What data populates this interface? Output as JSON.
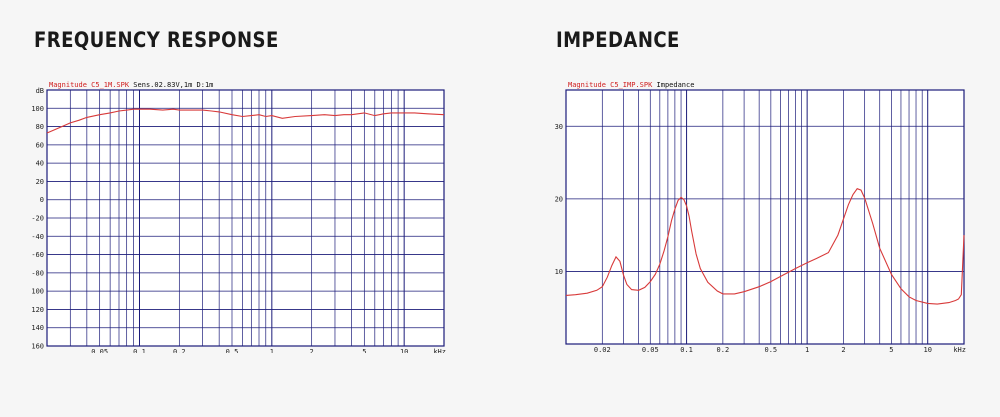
{
  "headings": {
    "left": "FREQUENCY RESPONSE",
    "right": "IMPEDANCE"
  },
  "colors": {
    "background": "#f6f6f6",
    "plot_background": "#ffffff",
    "grid": "#1c1c7a",
    "trace": "#d83a3a",
    "heading": "#1a1a1a",
    "legend_magnitude": "#d02020"
  },
  "chart_data": [
    {
      "type": "line",
      "legend": {
        "series_label": "Magnitude C5_1M.SPK",
        "note": "Sens.02.83V,1m D:1m"
      },
      "x_unit": "kHz",
      "x_scale": "log",
      "xlim": [
        0.02,
        20
      ],
      "x_tick_labels": [
        {
          "value": 0.05,
          "label": "0.05"
        },
        {
          "value": 0.1,
          "label": "0.1"
        },
        {
          "value": 0.2,
          "label": "0.2"
        },
        {
          "value": 0.5,
          "label": "0.5"
        },
        {
          "value": 1,
          "label": "1"
        },
        {
          "value": 2,
          "label": "2"
        },
        {
          "value": 5,
          "label": "5"
        },
        {
          "value": 10,
          "label": "10"
        }
      ],
      "y_unit": "dB",
      "ylim": [
        -160,
        120
      ],
      "y_ticks": [
        100,
        80,
        60,
        40,
        20,
        0,
        -20,
        -40,
        -60,
        -80,
        -100,
        -120,
        -140,
        -160
      ],
      "grid": true,
      "series": [
        {
          "x": [
            0.02,
            0.025,
            0.03,
            0.035,
            0.04,
            0.05,
            0.06,
            0.07,
            0.08,
            0.09,
            0.1,
            0.12,
            0.15,
            0.18,
            0.2,
            0.25,
            0.3,
            0.35,
            0.4,
            0.5,
            0.6,
            0.7,
            0.8,
            0.9,
            1,
            1.2,
            1.5,
            2,
            2.5,
            3,
            3.5,
            4,
            5,
            6,
            7,
            8,
            10,
            12,
            15,
            20
          ],
          "y": [
            73,
            79,
            84,
            87,
            90,
            93,
            95,
            97,
            98,
            99,
            99,
            99,
            98,
            99,
            98,
            98,
            98,
            97,
            96,
            93,
            91,
            92,
            93,
            91,
            92,
            89,
            91,
            92,
            93,
            92,
            93,
            93,
            95,
            92,
            94,
            95,
            95,
            95,
            94,
            93
          ]
        }
      ]
    },
    {
      "type": "line",
      "legend": {
        "series_label": "Magnitude C5_IMP.SPK",
        "note": "Impedance"
      },
      "x_unit": "kHz",
      "x_scale": "log",
      "xlim": [
        0.01,
        20
      ],
      "x_tick_labels": [
        {
          "value": 0.02,
          "label": "0.02"
        },
        {
          "value": 0.05,
          "label": "0.05"
        },
        {
          "value": 0.1,
          "label": "0.1"
        },
        {
          "value": 0.2,
          "label": "0.2"
        },
        {
          "value": 0.5,
          "label": "0.5"
        },
        {
          "value": 1,
          "label": "1"
        },
        {
          "value": 2,
          "label": "2"
        },
        {
          "value": 5,
          "label": "5"
        },
        {
          "value": 10,
          "label": "10"
        }
      ],
      "ylim": [
        0,
        35
      ],
      "y_ticks": [
        30,
        20,
        10
      ],
      "grid": true,
      "series": [
        {
          "x": [
            0.01,
            0.012,
            0.015,
            0.018,
            0.02,
            0.022,
            0.024,
            0.026,
            0.028,
            0.03,
            0.032,
            0.035,
            0.04,
            0.045,
            0.05,
            0.055,
            0.06,
            0.065,
            0.07,
            0.075,
            0.08,
            0.085,
            0.09,
            0.095,
            0.1,
            0.105,
            0.11,
            0.12,
            0.13,
            0.15,
            0.18,
            0.2,
            0.25,
            0.3,
            0.4,
            0.5,
            0.6,
            0.8,
            1,
            1.2,
            1.5,
            1.8,
            2,
            2.2,
            2.4,
            2.6,
            2.8,
            3,
            3.5,
            4,
            5,
            6,
            7,
            8,
            10,
            12,
            15,
            17,
            18,
            19,
            20
          ],
          "y": [
            6.7,
            6.8,
            7.0,
            7.4,
            7.9,
            9.2,
            10.8,
            12.0,
            11.4,
            9.5,
            8.2,
            7.5,
            7.4,
            7.8,
            8.6,
            9.6,
            11.0,
            12.8,
            14.8,
            17.0,
            18.6,
            19.8,
            20.2,
            19.9,
            19.0,
            17.6,
            15.6,
            12.4,
            10.4,
            8.5,
            7.3,
            6.9,
            6.9,
            7.2,
            7.9,
            8.6,
            9.3,
            10.4,
            11.2,
            11.8,
            12.6,
            15.0,
            17.2,
            19.2,
            20.6,
            21.4,
            21.2,
            20.1,
            16.6,
            13.2,
            9.6,
            7.6,
            6.5,
            6.0,
            5.6,
            5.5,
            5.7,
            6.0,
            6.2,
            6.8,
            15.0
          ]
        }
      ]
    }
  ]
}
